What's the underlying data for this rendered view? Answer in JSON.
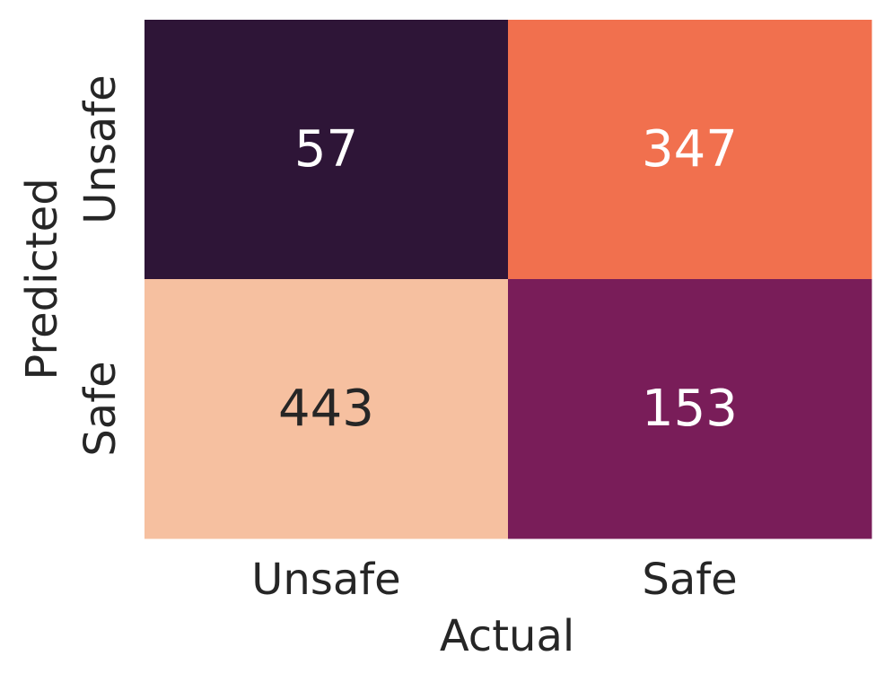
{
  "chart_data": {
    "type": "heatmap",
    "title": "",
    "xlabel": "Actual",
    "ylabel": "Predicted",
    "x_categories": [
      "Unsafe",
      "Safe"
    ],
    "y_categories": [
      "Unsafe",
      "Safe"
    ],
    "values": [
      [
        57,
        347
      ],
      [
        443,
        153
      ]
    ],
    "cell_colors": [
      [
        "#2e1537",
        "#f1704e"
      ],
      [
        "#f6c0a0",
        "#791d59"
      ]
    ],
    "cell_text_colors": [
      [
        "#ffffff",
        "#ffffff"
      ],
      [
        "#262626",
        "#ffffff"
      ]
    ],
    "colorbar": false,
    "grid": false,
    "legend": "none"
  }
}
